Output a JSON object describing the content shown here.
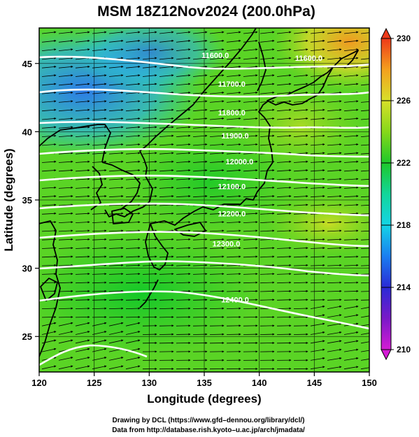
{
  "title": "MSM 18Z12Nov2024 (200.0hPa)",
  "credits": {
    "line1": "Drawing by DCL (https://www.gfd–dennou.org/library/dcl/)",
    "line2": "Data from http://database.rish.kyoto–u.ac.jp/arch/jmadata/"
  },
  "map": {
    "xlabel": "Longitude (degrees)",
    "ylabel": "Latitude  (degrees)",
    "lon_range": [
      120,
      150
    ],
    "lat_range": [
      22.4,
      47.6
    ],
    "lon_ticks": [
      "120",
      "125",
      "130",
      "135",
      "140",
      "145",
      "150"
    ],
    "lat_ticks": [
      "25",
      "30",
      "35",
      "40",
      "45"
    ],
    "grid": true
  },
  "colorbar": {
    "range": [
      210,
      230
    ],
    "labels": [
      "230",
      "226",
      "222",
      "218",
      "214",
      "210"
    ],
    "colors": {
      "210": "#d41bd4",
      "212": "#7a19c8",
      "214": "#2a2ad6",
      "216": "#1a7ef0",
      "218": "#14d4e6",
      "220": "#12d69a",
      "222": "#1ec82a",
      "224": "#86d81a",
      "226": "#d8e02a",
      "228": "#f4a01e",
      "230": "#ee3a1a"
    }
  },
  "chart_data": {
    "type": "heatmap",
    "contour_labels": [
      {
        "text": "11600.0",
        "lon": 136.0,
        "lat": 45.4
      },
      {
        "text": "11600.0",
        "lon": 144.5,
        "lat": 45.2
      },
      {
        "text": "11700.0",
        "lon": 137.5,
        "lat": 43.3
      },
      {
        "text": "11800.0",
        "lon": 137.5,
        "lat": 41.2
      },
      {
        "text": "11900.0",
        "lon": 137.8,
        "lat": 39.5
      },
      {
        "text": "12000.0",
        "lon": 138.2,
        "lat": 37.6
      },
      {
        "text": "12100.0",
        "lon": 137.5,
        "lat": 35.8
      },
      {
        "text": "12200.0",
        "lon": 137.5,
        "lat": 33.8
      },
      {
        "text": "12300.0",
        "lon": 137.0,
        "lat": 31.6
      },
      {
        "text": "12400.0",
        "lon": 137.8,
        "lat": 27.5
      }
    ]
  }
}
